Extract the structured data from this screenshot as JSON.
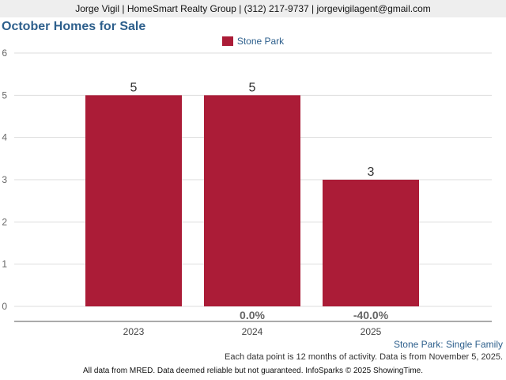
{
  "header": {
    "agent_line": "Jorge Vigil | HomeSmart Realty Group | (312) 217-9737 | jorgevigilagent@gmail.com"
  },
  "chart_data": {
    "type": "bar",
    "title": "October Homes for Sale",
    "categories": [
      "2023",
      "2024",
      "2025"
    ],
    "series": [
      {
        "name": "Stone Park",
        "values": [
          5,
          5,
          3
        ]
      }
    ],
    "change_labels": [
      "",
      "0.0%",
      "-40.0%"
    ],
    "ylim": [
      0,
      6
    ],
    "yticks": [
      0,
      1,
      2,
      3,
      4,
      5,
      6
    ],
    "grid": true,
    "legend": "top-center",
    "bar_color": "#ab1c37"
  },
  "subtitle_right": "Stone Park: Single Family",
  "note": "Each data point is 12 months of activity. Data is from November 5, 2025.",
  "footer": "All data from MRED. Data deemed reliable but not guaranteed. InfoSparks © 2025 ShowingTime."
}
